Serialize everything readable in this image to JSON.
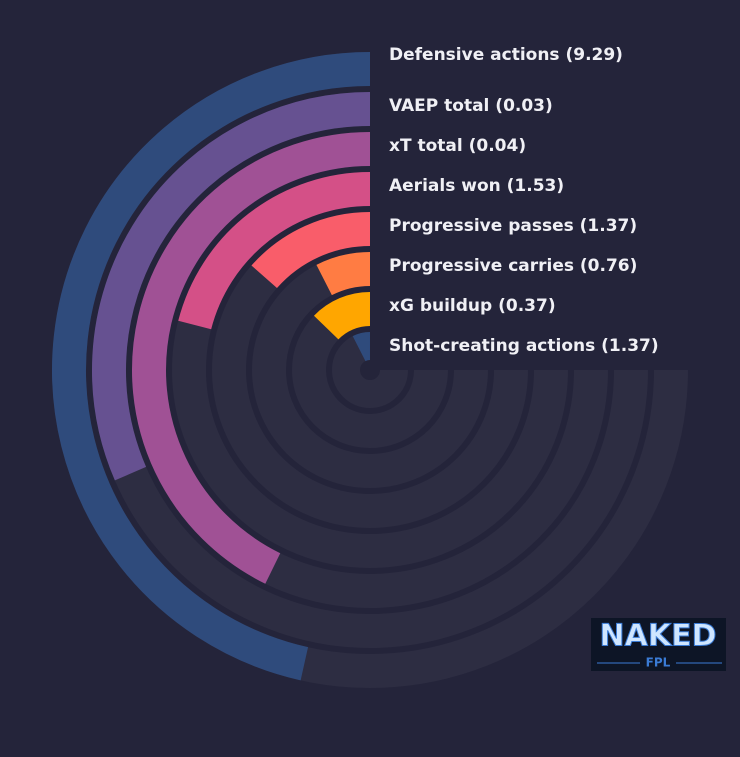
{
  "chart_data": {
    "type": "radial_bar",
    "categories": [
      "Defensive actions (9.29)",
      "VAEP total (0.03)",
      "xT total (0.04)",
      "Aerials won (1.53)",
      "Progressive passes (1.37)",
      "Progressive carries (0.76)",
      "xG buildup (0.37)",
      "Shot-creating actions (1.37)"
    ],
    "values": [
      62,
      42,
      57,
      28,
      18,
      10,
      17,
      10
    ],
    "colors": [
      "#2f4b7c",
      "#665191",
      "#a05195",
      "#d45087",
      "#f95d6a",
      "#ff7c43",
      "#ffa600",
      "#2f4b7c"
    ],
    "ylim": [
      0,
      100
    ]
  },
  "logo": {
    "title": "NAKED",
    "subtitle": "FPL"
  }
}
